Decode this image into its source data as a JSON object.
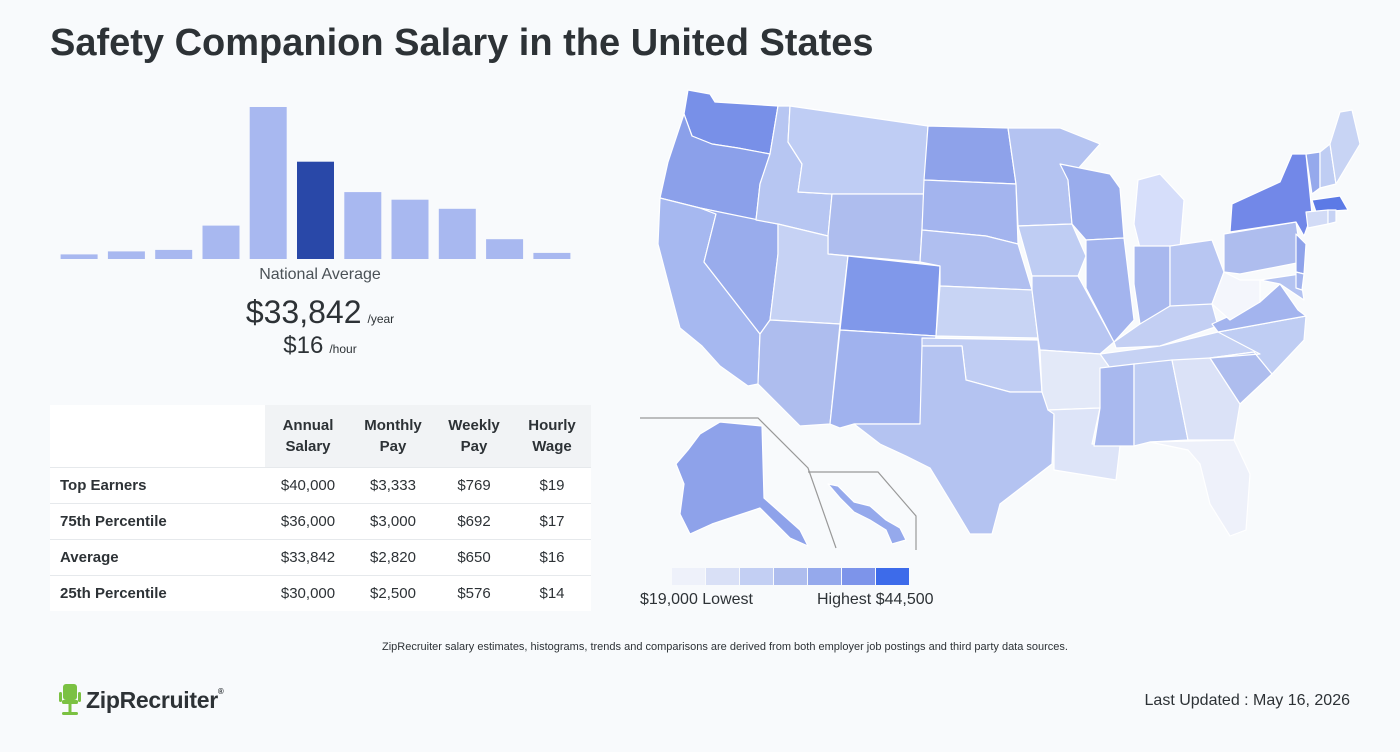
{
  "page": {
    "title": "Safety Companion Salary in the United States",
    "footnote": "ZipRecruiter salary estimates, histograms, trends and comparisons are derived from both employer job postings and third party data sources.",
    "last_updated_label": "Last Updated : May 16, 2026",
    "logo_text": "ZipRecruiter",
    "logo_reg": "®"
  },
  "national": {
    "label": "National Average",
    "annual": "$33,842",
    "annual_unit": "/year",
    "hourly": "$16",
    "hourly_unit": "/hour"
  },
  "table": {
    "headers": [
      "Annual Salary",
      "Monthly Pay",
      "Weekly Pay",
      "Hourly Wage"
    ],
    "rows": [
      {
        "label": "Top Earners",
        "annual": "$40,000",
        "monthly": "$3,333",
        "weekly": "$769",
        "hourly": "$19"
      },
      {
        "label": "75th Percentile",
        "annual": "$36,000",
        "monthly": "$3,000",
        "weekly": "$692",
        "hourly": "$17"
      },
      {
        "label": "Average",
        "annual": "$33,842",
        "monthly": "$2,820",
        "weekly": "$650",
        "hourly": "$16"
      },
      {
        "label": "25th Percentile",
        "annual": "$30,000",
        "monthly": "$2,500",
        "weekly": "$576",
        "hourly": "$14"
      }
    ]
  },
  "chart_data": {
    "type": "bar",
    "values": [
      3,
      5,
      6,
      22,
      100,
      64,
      44,
      39,
      33,
      13,
      4
    ],
    "highlight_index": 5,
    "bar_color": "#a8b8f0",
    "highlight_color": "#2948a8"
  },
  "legend": {
    "low_label": "$19,000 Lowest",
    "high_label": "Highest $44,500",
    "colors": [
      "#eef1fa",
      "#d9e0f6",
      "#c3cff3",
      "#aebdee",
      "#95a9ec",
      "#7d94ea",
      "#3d6bea"
    ]
  }
}
